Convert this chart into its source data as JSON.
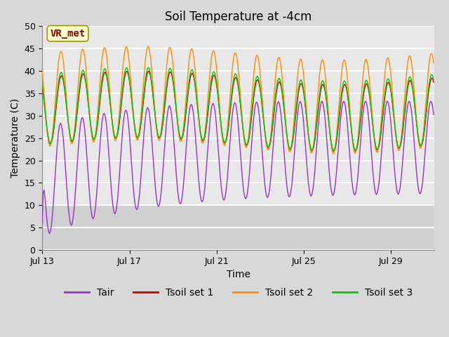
{
  "title": "Soil Temperature at -4cm",
  "xlabel": "Time",
  "ylabel": "Temperature (C)",
  "ylim": [
    0,
    50
  ],
  "yticks": [
    0,
    5,
    10,
    15,
    20,
    25,
    30,
    35,
    40,
    45,
    50
  ],
  "annotation_text": "VR_met",
  "annotation_color": "#8B0000",
  "annotation_bg": "#FFFFCC",
  "line_colors": {
    "Tair": "#9932CC",
    "Tsoil set 1": "#CC0000",
    "Tsoil set 2": "#FF8C00",
    "Tsoil set 3": "#00CC00"
  },
  "bg_color": "#D8D8D8",
  "plot_bg_color": "#E8E8E8",
  "plot_bg_lower": "#D0D0D0",
  "grid_color": "#FFFFFF",
  "x_tick_days": [
    13,
    17,
    21,
    25,
    29
  ],
  "title_fontsize": 12,
  "axis_fontsize": 10,
  "tick_fontsize": 9,
  "legend_fontsize": 10
}
